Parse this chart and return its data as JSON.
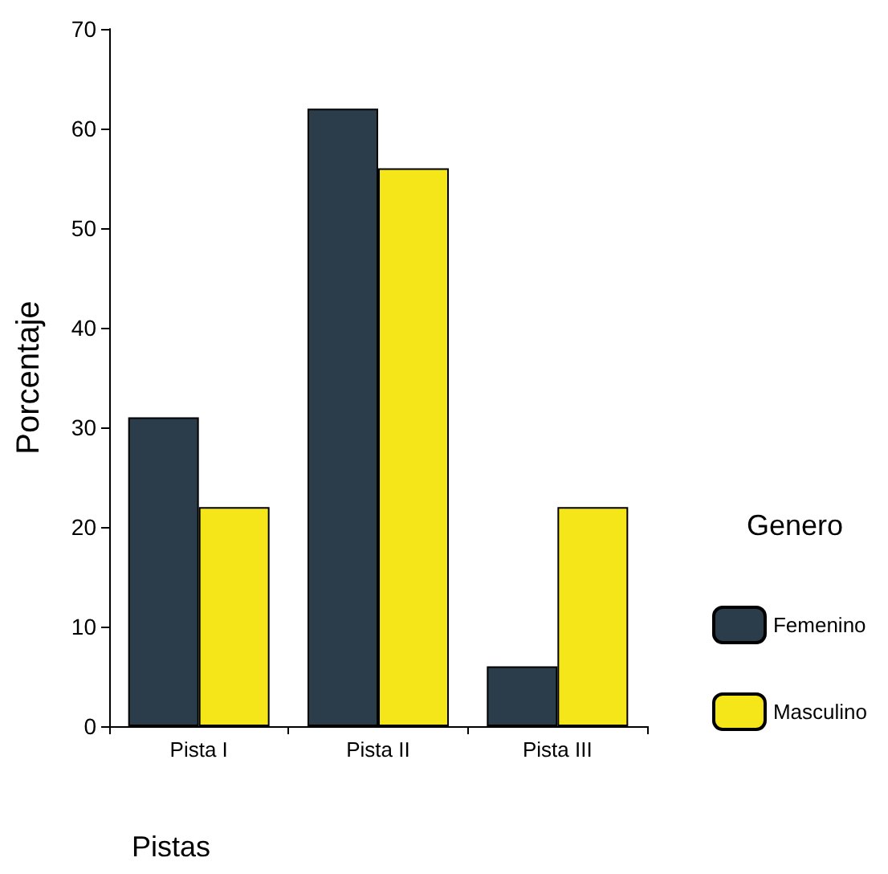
{
  "chart_data": {
    "type": "bar",
    "xlabel": "Pistas",
    "ylabel": "Porcentaje",
    "legend_title": "Genero",
    "categories": [
      "Pista I",
      "Pista II",
      "Pista III"
    ],
    "series": [
      {
        "name": "Femenino",
        "color": "#2b3d4a",
        "values": [
          31,
          62,
          6
        ]
      },
      {
        "name": "Masculino",
        "color": "#f5e61a",
        "values": [
          22,
          56,
          22
        ]
      }
    ],
    "ylim": [
      0,
      70
    ],
    "yticks": [
      0,
      10,
      20,
      30,
      40,
      50,
      60,
      70
    ],
    "grid": false,
    "legend": "right"
  }
}
